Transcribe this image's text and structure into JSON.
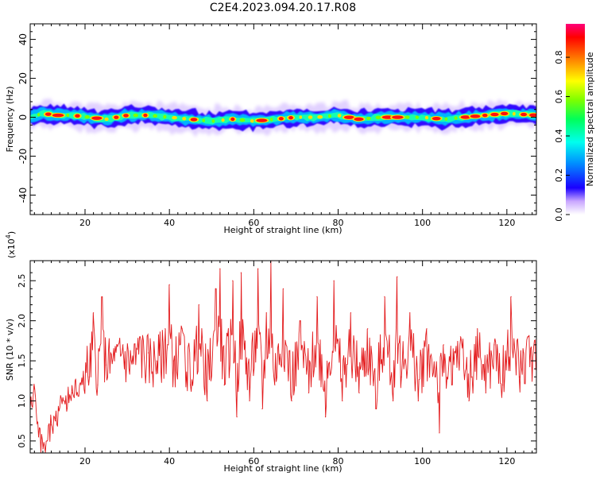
{
  "title": "C2E4.2023.094.20.17.R08",
  "chart_data": [
    {
      "type": "heatmap",
      "xlabel": "Height of straight line (km)",
      "ylabel": "Frequency (Hz)",
      "xlim": [
        7,
        127
      ],
      "ylim": [
        -50,
        48
      ],
      "xticks": [
        20,
        40,
        60,
        80,
        100,
        120
      ],
      "yticks": [
        -40,
        -20,
        0,
        20,
        40
      ],
      "ridge": {
        "x": [
          7,
          10,
          13,
          17,
          21,
          25,
          30,
          35,
          40,
          45,
          50,
          55,
          60,
          65,
          70,
          75,
          80,
          85,
          90,
          95,
          100,
          105,
          110,
          115,
          120,
          127
        ],
        "y": [
          0,
          2,
          1,
          1,
          0,
          -1,
          1,
          1,
          0,
          -1,
          -2,
          -1,
          -2,
          -1,
          0,
          0,
          1,
          -1,
          0,
          0,
          0,
          -1,
          0,
          1,
          2,
          1
        ]
      },
      "colorbar": {
        "label": "Normalized spectral amplitude",
        "ticks": [
          "0.0",
          "0.2",
          "0.4",
          "0.6",
          "0.8"
        ],
        "range": [
          0,
          0.97
        ]
      }
    },
    {
      "type": "line",
      "xlabel": "Height of straight line (km)",
      "ylabel": "SNR (10 * v/v)",
      "exponent_label": "(x10",
      "exponent_power": "4",
      "exponent_close": ")",
      "xlim": [
        7,
        127
      ],
      "ylim": [
        0.35,
        2.75
      ],
      "xticks": [
        20,
        40,
        60,
        80,
        100,
        120
      ],
      "yticks": [
        "0.5",
        "1.0",
        "1.5",
        "2.0",
        "2.5"
      ],
      "line_color": "#e31a1c",
      "series": [
        {
          "x": [
            7,
            8,
            9,
            10,
            11,
            12,
            13,
            15,
            17,
            19,
            21,
            22,
            23,
            24,
            25,
            27,
            29,
            31,
            33,
            35,
            37,
            39,
            40,
            41,
            43,
            45,
            47,
            49,
            51,
            52,
            53,
            55,
            56,
            57,
            59,
            61,
            62,
            63,
            64,
            65,
            67,
            69,
            71,
            73,
            75,
            77,
            79,
            81,
            83,
            85,
            87,
            89,
            91,
            93,
            94,
            95,
            97,
            99,
            101,
            103,
            104,
            105,
            107,
            109,
            111,
            113,
            115,
            117,
            119,
            121,
            123,
            125,
            127
          ],
          "y": [
            0.9,
            1.15,
            0.55,
            0.4,
            0.5,
            0.7,
            0.75,
            1.0,
            1.1,
            1.2,
            1.3,
            2.1,
            1.2,
            2.3,
            1.45,
            1.5,
            1.7,
            1.5,
            1.8,
            1.6,
            1.5,
            1.9,
            2.45,
            1.5,
            1.9,
            1.2,
            2.2,
            1.0,
            2.4,
            2.65,
            1.2,
            2.5,
            0.8,
            2.6,
            1.0,
            2.65,
            0.9,
            2.1,
            2.75,
            1.2,
            2.4,
            1.0,
            2.0,
            1.1,
            2.3,
            0.8,
            2.5,
            1.0,
            2.1,
            1.1,
            1.9,
            0.9,
            2.3,
            1.0,
            2.55,
            1.3,
            2.1,
            1.0,
            1.9,
            1.3,
            0.6,
            1.7,
            1.2,
            1.8,
            1.0,
            1.9,
            1.1,
            1.7,
            1.2,
            2.3,
            1.3,
            1.8,
            1.4
          ]
        }
      ]
    }
  ]
}
